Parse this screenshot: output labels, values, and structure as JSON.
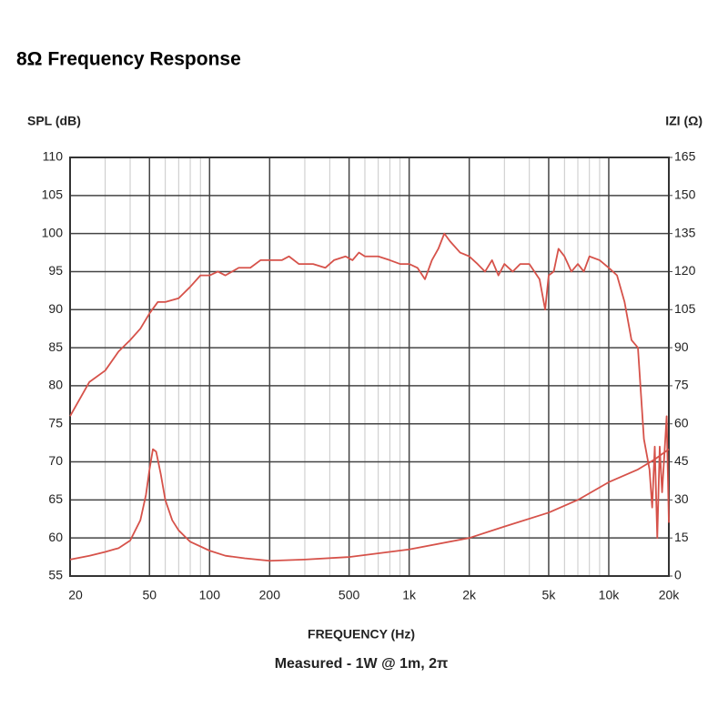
{
  "chart_data": {
    "type": "line",
    "title": "8Ω Frequency Response",
    "y_label": "SPL (dB)",
    "y2_label": "IZI (Ω)",
    "x_label": "FREQUENCY (Hz)",
    "subtitle": "Measured - 1W @ 1m, 2π",
    "xscale": "log",
    "grid": true,
    "xlim": [
      20,
      20000
    ],
    "xticks": [
      20,
      50,
      100,
      200,
      500,
      {
        "value": 1000,
        "label": "1k"
      },
      {
        "value": 2000,
        "label": "2k"
      },
      {
        "value": 5000,
        "label": "5k"
      },
      {
        "value": 10000,
        "label": "10k"
      },
      {
        "value": 20000,
        "label": "20k"
      }
    ],
    "xminor_ticks": [
      30,
      40,
      60,
      70,
      80,
      90,
      300,
      400,
      600,
      700,
      800,
      900,
      3000,
      4000,
      6000,
      7000,
      8000,
      9000
    ],
    "ylim": [
      55,
      110
    ],
    "yticks": [
      55,
      60,
      65,
      70,
      75,
      80,
      85,
      90,
      95,
      100,
      105,
      110
    ],
    "y2lim": [
      0,
      165
    ],
    "y2ticks": [
      0,
      15,
      30,
      45,
      60,
      75,
      90,
      105,
      120,
      135,
      150,
      165
    ],
    "series": [
      {
        "color": "#d6524a",
        "x": [
          20,
          25,
          30,
          35,
          40,
          45,
          50,
          55,
          60,
          70,
          80,
          90,
          100,
          110,
          120,
          140,
          160,
          180,
          200,
          230,
          250,
          280,
          330,
          380,
          420,
          480,
          520,
          560,
          600,
          700,
          800,
          900,
          1000,
          1100,
          1200,
          1300,
          1400,
          1500,
          1600,
          1800,
          2000,
          2200,
          2400,
          2600,
          2800,
          3000,
          3300,
          3600,
          4000,
          4500,
          4800,
          5000,
          5300,
          5600,
          6000,
          6500,
          7000,
          7500,
          8000,
          9000,
          10000,
          11000,
          12000,
          13000,
          14000,
          15000,
          16000,
          16500,
          17000,
          17500,
          18000,
          18500,
          19000,
          19500,
          20000
        ],
        "values": [
          76,
          80.5,
          82,
          84.5,
          86,
          87.5,
          89.5,
          91,
          91,
          91.5,
          93,
          94.5,
          94.5,
          95,
          94.5,
          95.5,
          95.5,
          96.5,
          96.5,
          96.5,
          97,
          96,
          96,
          95.5,
          96.5,
          97,
          96.5,
          97.5,
          97,
          97,
          96.5,
          96,
          96,
          95.5,
          94,
          96.5,
          98,
          100,
          99,
          97.5,
          97,
          96,
          95,
          96.5,
          94.5,
          96,
          95,
          96,
          96,
          94,
          90,
          94.5,
          95,
          98,
          97,
          95,
          96,
          95,
          97,
          96.5,
          95.5,
          94.5,
          91,
          86,
          85,
          73,
          69,
          64,
          72,
          60,
          72,
          66,
          71,
          76,
          62
        ]
      },
      {
        "color": "#d6524a",
        "axis": "y2",
        "x": [
          20,
          25,
          30,
          35,
          40,
          45,
          48,
          50,
          52,
          54,
          57,
          60,
          65,
          70,
          80,
          100,
          120,
          150,
          200,
          300,
          500,
          1000,
          2000,
          3000,
          5000,
          7000,
          10000,
          14000,
          17000,
          20000
        ],
        "values": [
          6.5,
          8,
          9.5,
          11,
          14,
          22,
          32,
          42,
          50,
          49,
          40,
          30,
          22,
          18,
          13.5,
          10,
          8,
          7,
          6,
          6.5,
          7.5,
          10.5,
          15,
          19.5,
          25,
          30,
          37,
          42,
          46,
          50
        ]
      }
    ]
  }
}
